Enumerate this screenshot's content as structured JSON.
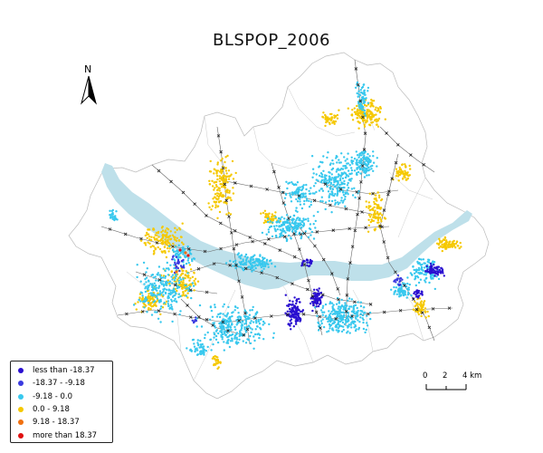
{
  "map": {
    "title": "BLSPOP_2006",
    "north_label": "N"
  },
  "legend": {
    "items": [
      {
        "label": "less than -18.37",
        "color": "#2a0fd0"
      },
      {
        "label": "-18.37 - -9.18",
        "color": "#3a3ae0"
      },
      {
        "label": "-9.18 - 0.0",
        "color": "#38c8ee"
      },
      {
        "label": "0.0 - 9.18",
        "color": "#f5c800"
      },
      {
        "label": "9.18 - 18.37",
        "color": "#f07010"
      },
      {
        "label": "more than 18.37",
        "color": "#e01010"
      }
    ]
  },
  "scale_bar": {
    "labels": [
      "0",
      "2",
      "4 km"
    ]
  },
  "colors": {
    "river": "#bee0ea",
    "boundary": "#bbbbbb",
    "roads": "#666666",
    "stations": "#222222"
  }
}
